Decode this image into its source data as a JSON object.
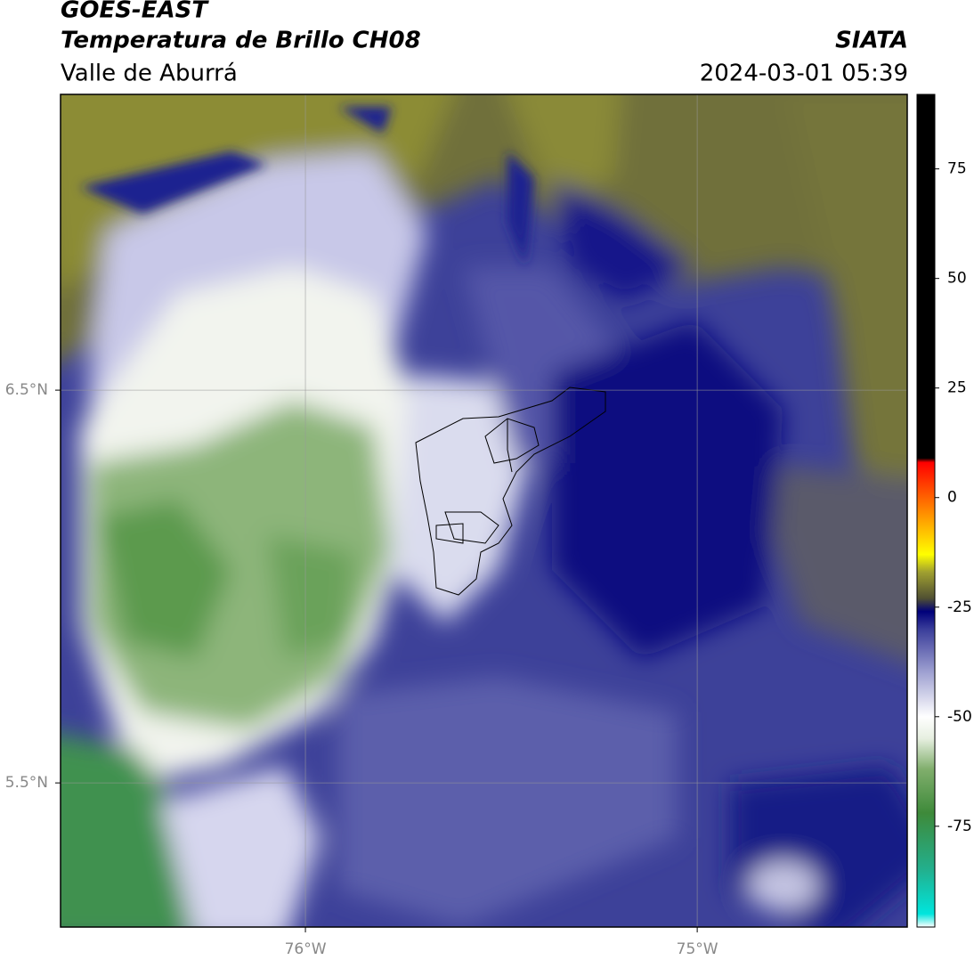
{
  "header": {
    "title": "GOES-EAST",
    "subtitle": "Temperatura de Brillo CH08",
    "region": "Valle de Aburrá",
    "agency": "SIATA",
    "datetime": "2024-03-01 05:39"
  },
  "map": {
    "xlim": [
      -76.625,
      -74.464
    ],
    "ylim": [
      5.133,
      7.253
    ],
    "xticks": [
      {
        "value": -76,
        "label": "76°W"
      },
      {
        "value": -75,
        "label": "75°W"
      }
    ],
    "yticks": [
      {
        "value": 6.5,
        "label": "6.5°N"
      },
      {
        "value": 5.5,
        "label": "5.5°N"
      }
    ],
    "grid": true
  },
  "colorbar": {
    "lim": [
      -98,
      92
    ],
    "ticks": [
      75,
      50,
      25,
      0,
      -25,
      -50,
      -75
    ],
    "colormap": [
      {
        "value": -98,
        "color": "#ffffff"
      },
      {
        "value": -95,
        "color": "#00e5dd"
      },
      {
        "value": -85,
        "color": "#22b08e"
      },
      {
        "value": -72,
        "color": "#3e8a3a"
      },
      {
        "value": -62,
        "color": "#80ae6c"
      },
      {
        "value": -55,
        "color": "#e6efe0"
      },
      {
        "value": -50,
        "color": "#ffffff"
      },
      {
        "value": -40,
        "color": "#a0a2d2"
      },
      {
        "value": -30,
        "color": "#3a3d9a"
      },
      {
        "value": -26,
        "color": "#00007a"
      },
      {
        "value": -23,
        "color": "#505032"
      },
      {
        "value": -17,
        "color": "#a0a030"
      },
      {
        "value": -13,
        "color": "#ffff00"
      },
      {
        "value": -5,
        "color": "#ffa000"
      },
      {
        "value": 8,
        "color": "#ff0000"
      },
      {
        "value": 9,
        "color": "#000000"
      },
      {
        "value": 92,
        "color": "#000000"
      }
    ]
  }
}
